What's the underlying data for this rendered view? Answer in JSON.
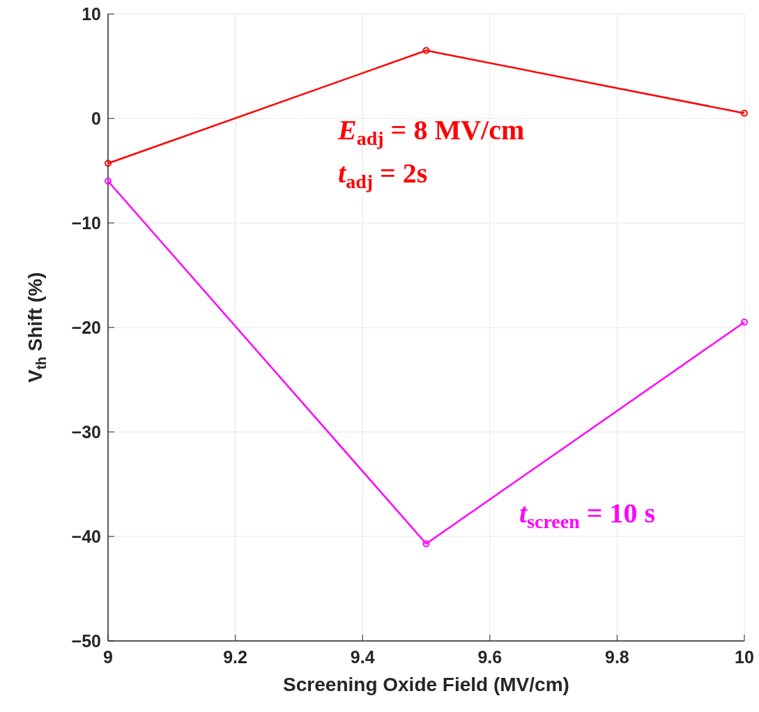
{
  "chart_data": {
    "type": "line",
    "xlabel": "Screening Oxide Field (MV/cm)",
    "ylabel": "V$_{th}$ Shift (%)",
    "x": [
      9,
      9.5,
      10
    ],
    "series": [
      {
        "color": "#ff0000",
        "values": [
          -4.3,
          6.5,
          0.5
        ]
      },
      {
        "name": "t$_{screen}$ = 10 s",
        "color": "#ff00ff",
        "values": [
          -6,
          -40.7,
          -19.5
        ]
      }
    ],
    "annotations": [
      "E$_{adj}$ = 8 MV/cm",
      "t$_{adj}$ = 2s"
    ],
    "xlim": [
      9,
      10
    ],
    "xticks": [
      9,
      9.2,
      9.4,
      9.6,
      9.8,
      10
    ],
    "ylim": [
      -50,
      10
    ],
    "yticks": [
      {
        "value": -50,
        "label": "−50"
      },
      {
        "value": -40,
        "label": "−40"
      },
      {
        "value": -30,
        "label": "−30"
      },
      {
        "value": -20,
        "label": "−20"
      },
      {
        "value": -10,
        "label": "−10"
      },
      0,
      10
    ],
    "grid": true,
    "marker": "circle",
    "line_style": "solid"
  }
}
